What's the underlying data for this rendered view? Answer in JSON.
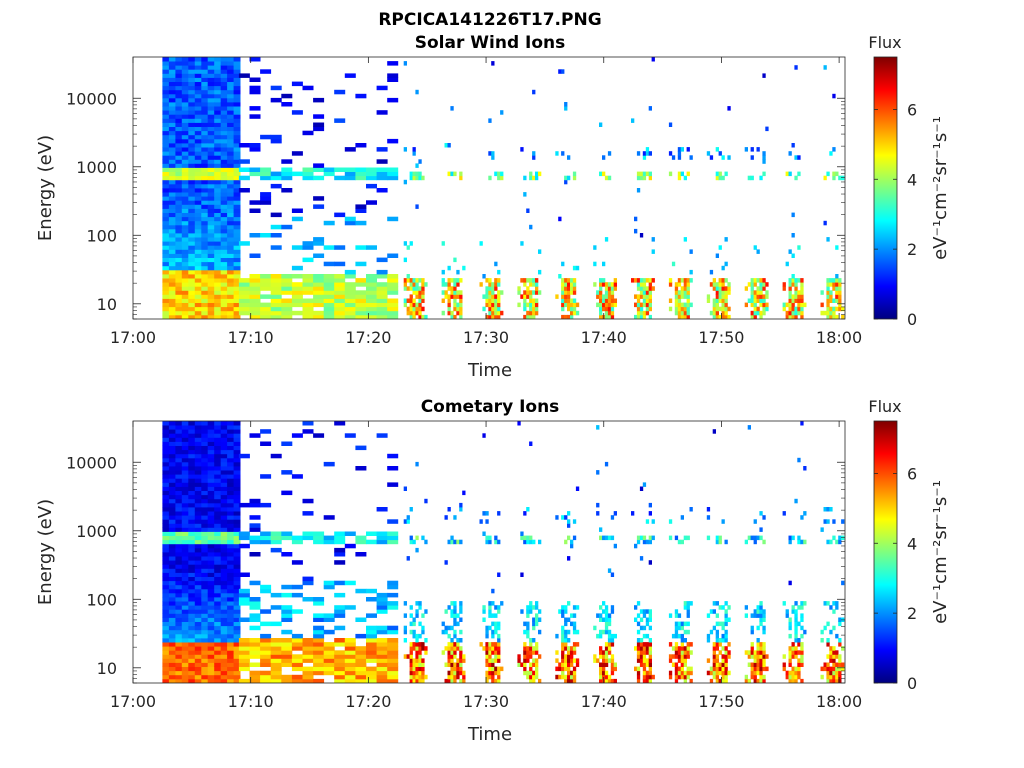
{
  "figure": {
    "title": "RPCICA141226T17.PNG"
  },
  "colorbar_colors": [
    "#00007f",
    "#0000ff",
    "#007fff",
    "#00ffff",
    "#7fff7f",
    "#ffff00",
    "#ff7f00",
    "#ff0000",
    "#7f0000"
  ],
  "chart_data": [
    {
      "type": "heatmap",
      "title": "Solar Wind Ions",
      "xlabel": "Time",
      "ylabel": "Energy (eV)",
      "x_ticks": [
        "17:00",
        "17:10",
        "17:20",
        "17:30",
        "17:40",
        "17:50",
        "18:00"
      ],
      "x_range_minutes": [
        0,
        60.5
      ],
      "y_scale": "log",
      "y_ticks": [
        "10",
        "100",
        "1000",
        "10000"
      ],
      "y_range": [
        6,
        40000
      ],
      "colorbar": {
        "label": "Flux",
        "unit": "eV⁻¹cm⁻²sr⁻¹s⁻¹",
        "ticks": [
          "0",
          "2",
          "4",
          "6"
        ],
        "range": [
          0,
          7.5
        ]
      },
      "grid": false
    },
    {
      "type": "heatmap",
      "title": "Cometary Ions",
      "xlabel": "Time",
      "ylabel": "Energy (eV)",
      "x_ticks": [
        "17:00",
        "17:10",
        "17:20",
        "17:30",
        "17:40",
        "17:50",
        "18:00"
      ],
      "x_range_minutes": [
        0,
        60.5
      ],
      "y_scale": "log",
      "y_ticks": [
        "10",
        "100",
        "1000",
        "10000"
      ],
      "y_range": [
        6,
        40000
      ],
      "colorbar": {
        "label": "Flux",
        "unit": "eV⁻¹cm⁻²sr⁻¹s⁻¹",
        "ticks": [
          "0",
          "2",
          "4",
          "6"
        ],
        "range": [
          0,
          7.5
        ]
      },
      "grid": false
    }
  ]
}
